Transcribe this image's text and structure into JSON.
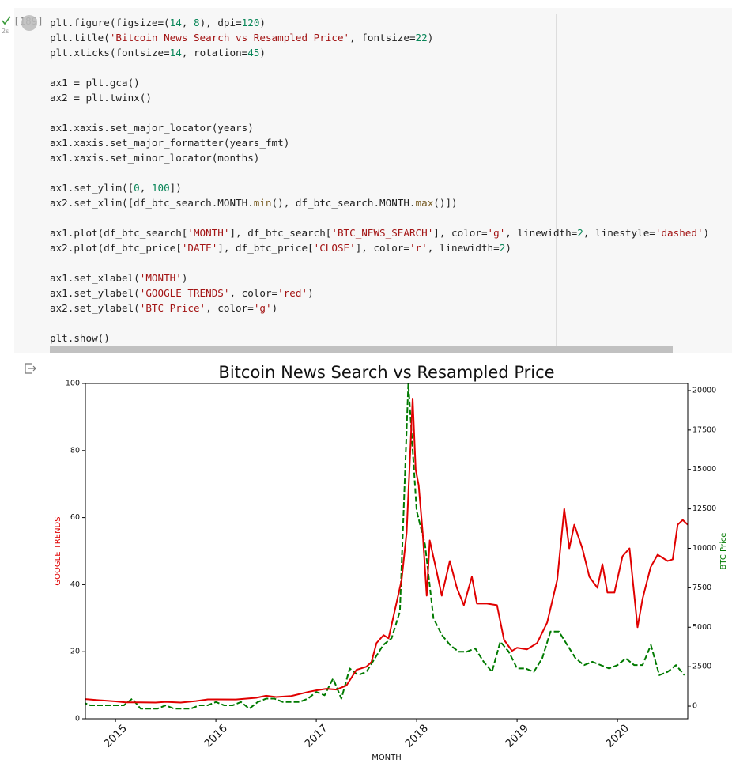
{
  "cell": {
    "prompt": "[189]",
    "duration": "2s",
    "code_blocks": [
      [
        "plt.figure(figsize=(14, 8), dpi=120)",
        "plt.title('Bitcoin News Search vs Resampled Price', fontsize=22)",
        "plt.xticks(fontsize=14, rotation=45)"
      ],
      [
        "ax1 = plt.gca()",
        "ax2 = plt.twinx()"
      ],
      [
        "ax1.xaxis.set_major_locator(years)",
        "ax1.xaxis.set_major_formatter(years_fmt)",
        "ax1.xaxis.set_minor_locator(months)"
      ],
      [
        "ax1.set_ylim([0, 100])",
        "ax2.set_xlim([df_btc_search.MONTH.min(), df_btc_search.MONTH.max()])"
      ],
      [
        "ax1.plot(df_btc_search['MONTH'], df_btc_search['BTC_NEWS_SEARCH'], color='g', linewidth=2, linestyle='dashed')",
        "ax2.plot(df_btc_price['DATE'], df_btc_price['CLOSE'], color='r', linewidth=2)"
      ],
      [
        "ax1.set_xlabel('MONTH')",
        "ax1.set_ylabel('GOOGLE TRENDS', color='red')",
        "ax2.set_ylabel('BTC Price', color='g')"
      ],
      [
        "plt.show()"
      ]
    ]
  },
  "chart_data": {
    "type": "line",
    "title": "Bitcoin News Search vs Resampled Price",
    "x_label": "MONTH",
    "y_label": "GOOGLE TRENDS",
    "y_label_color": "red",
    "y2_label": "BTC Price",
    "y2_label_color": "green",
    "xlim": [
      2014.7,
      2020.7
    ],
    "xticks": [
      2015,
      2016,
      2017,
      2018,
      2019,
      2020
    ],
    "ylim": [
      0,
      100
    ],
    "yticks": [
      0,
      20,
      40,
      60,
      80,
      100
    ],
    "y2lim": [
      -800,
      20450
    ],
    "y2ticks": [
      0,
      2500,
      5000,
      7500,
      10000,
      12500,
      15000,
      17500,
      20000
    ],
    "series": [
      {
        "color": "green",
        "linestyle": "dashed",
        "x": [
          2014.667,
          2014.75,
          2014.833,
          2014.917,
          2015.0,
          2015.083,
          2015.167,
          2015.25,
          2015.333,
          2015.417,
          2015.5,
          2015.583,
          2015.667,
          2015.75,
          2015.833,
          2015.917,
          2016.0,
          2016.083,
          2016.167,
          2016.25,
          2016.333,
          2016.417,
          2016.5,
          2016.583,
          2016.667,
          2016.75,
          2016.833,
          2016.917,
          2017.0,
          2017.083,
          2017.167,
          2017.25,
          2017.333,
          2017.417,
          2017.5,
          2017.583,
          2017.667,
          2017.75,
          2017.833,
          2017.917,
          2018.0,
          2018.083,
          2018.167,
          2018.25,
          2018.333,
          2018.417,
          2018.5,
          2018.583,
          2018.667,
          2018.75,
          2018.833,
          2018.917,
          2019.0,
          2019.083,
          2019.167,
          2019.25,
          2019.333,
          2019.417,
          2019.5,
          2019.583,
          2019.667,
          2019.75,
          2019.833,
          2019.917,
          2020.0,
          2020.083,
          2020.167,
          2020.25,
          2020.333,
          2020.417,
          2020.5,
          2020.583,
          2020.667
        ],
        "values": [
          5,
          4,
          4,
          4,
          4,
          4,
          6,
          3,
          3,
          3,
          4,
          3,
          3,
          3,
          4,
          4,
          5,
          4,
          4,
          5,
          3,
          5,
          6,
          6,
          5,
          5,
          5,
          6,
          8,
          7,
          12,
          6,
          15,
          13,
          14,
          18,
          22,
          24,
          32,
          100,
          62,
          52,
          30,
          25,
          22,
          20,
          20,
          21,
          17,
          14,
          23,
          20,
          15,
          15,
          14,
          18,
          26,
          26,
          22,
          18,
          16,
          17,
          16,
          15,
          16,
          18,
          16,
          16,
          22,
          13,
          14,
          16,
          13
        ]
      },
      {
        "color": "red",
        "axis": "y2",
        "x": [
          2014.7,
          2014.83,
          2015.0,
          2015.1,
          2015.25,
          2015.4,
          2015.5,
          2015.65,
          2015.8,
          2015.92,
          2016.0,
          2016.2,
          2016.4,
          2016.5,
          2016.6,
          2016.75,
          2016.92,
          2017.0,
          2017.1,
          2017.2,
          2017.3,
          2017.4,
          2017.5,
          2017.55,
          2017.6,
          2017.67,
          2017.72,
          2017.78,
          2017.85,
          2017.9,
          2017.96,
          2017.99,
          2018.02,
          2018.06,
          2018.1,
          2018.13,
          2018.2,
          2018.25,
          2018.33,
          2018.4,
          2018.47,
          2018.55,
          2018.6,
          2018.7,
          2018.8,
          2018.87,
          2018.95,
          2019.0,
          2019.1,
          2019.2,
          2019.3,
          2019.4,
          2019.47,
          2019.52,
          2019.57,
          2019.65,
          2019.72,
          2019.8,
          2019.85,
          2019.9,
          2019.97,
          2020.05,
          2020.12,
          2020.2,
          2020.25,
          2020.33,
          2020.4,
          2020.5,
          2020.55,
          2020.6,
          2020.65,
          2020.7
        ],
        "values": [
          450,
          380,
          300,
          240,
          240,
          230,
          270,
          230,
          320,
          430,
          430,
          420,
          530,
          660,
          580,
          640,
          900,
          1000,
          1100,
          1050,
          1300,
          2300,
          2500,
          2800,
          4000,
          4500,
          4300,
          6000,
          8000,
          11000,
          19500,
          15000,
          14000,
          11000,
          7000,
          10500,
          8500,
          7000,
          9200,
          7500,
          6400,
          8200,
          6500,
          6500,
          6400,
          4200,
          3500,
          3700,
          3600,
          4000,
          5300,
          8000,
          12500,
          10000,
          11500,
          10000,
          8200,
          7500,
          9000,
          7200,
          7200,
          9500,
          10000,
          5000,
          6800,
          8800,
          9600,
          9200,
          9300,
          11500,
          11800,
          11500
        ]
      }
    ]
  }
}
